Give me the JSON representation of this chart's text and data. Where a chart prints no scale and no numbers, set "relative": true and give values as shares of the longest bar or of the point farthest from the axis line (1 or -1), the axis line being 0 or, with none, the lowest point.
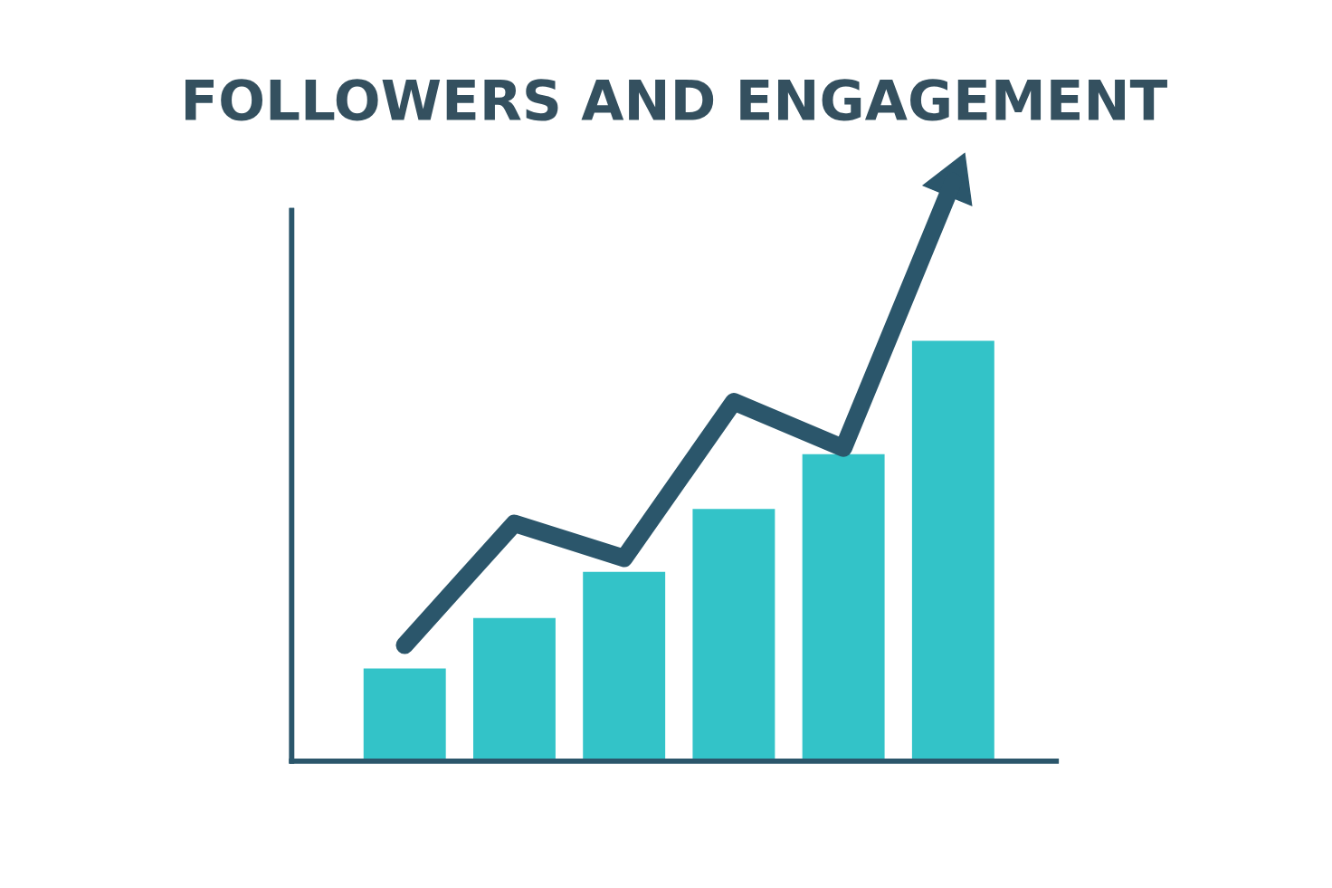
{
  "chart_data": [
    {
      "type": "bar",
      "title": "FOLLOWERS AND ENGAGEMENT",
      "relative": true,
      "color": "#33c3c8",
      "categories": [
        null,
        null,
        null,
        null,
        null,
        null
      ],
      "values": [
        0.22,
        0.34,
        0.45,
        0.6,
        0.73,
        1.0
      ]
    },
    {
      "type": "line",
      "relative": true,
      "color": "#2b566b",
      "categories": [
        null,
        null,
        null,
        null,
        null,
        null
      ],
      "values": [
        0.2,
        0.41,
        0.35,
        0.62,
        0.54,
        1.0
      ]
    }
  ]
}
